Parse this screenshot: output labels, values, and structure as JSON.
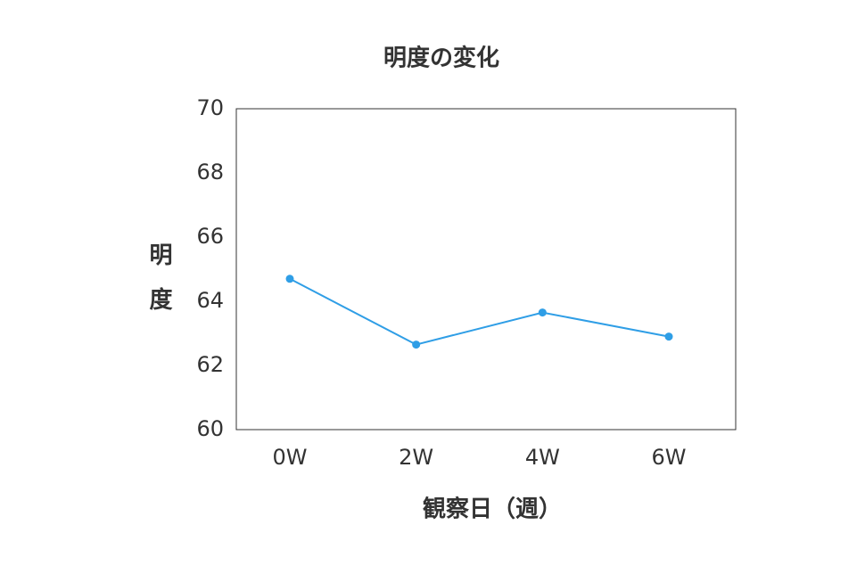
{
  "chart_data": {
    "type": "line",
    "title": "明度の変化",
    "x_label": "観察日（週）",
    "y_label": "明度",
    "categories": [
      "0W",
      "2W",
      "4W",
      "6W"
    ],
    "series": [
      {
        "name": "明度",
        "color": "#2f9ee6",
        "values": [
          64.7,
          62.65,
          63.65,
          62.9
        ]
      }
    ],
    "ylim": [
      60,
      70
    ],
    "yticks": [
      60,
      62,
      64,
      66,
      68,
      70
    ],
    "grid": false
  }
}
